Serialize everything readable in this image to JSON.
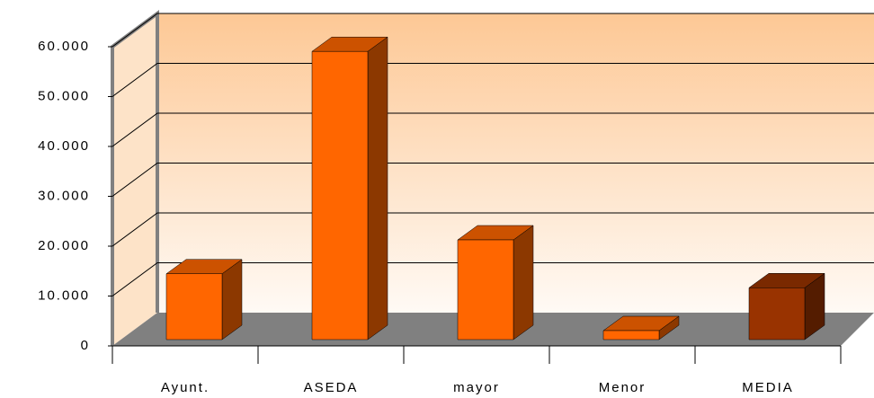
{
  "chart_data": {
    "type": "bar3d",
    "categories": [
      "Ayunt.",
      "ASEDA",
      "mayor",
      "Menor",
      "MEDIA"
    ],
    "values": [
      13200,
      57800,
      20000,
      1800,
      10400
    ],
    "colors": [
      "#ff6600",
      "#ff6600",
      "#ff6600",
      "#ff6600",
      "#993300"
    ],
    "ylim": [
      0,
      60000
    ],
    "yticks": [
      0,
      {
        "value": 10000,
        "label": "10.000"
      },
      {
        "value": 20000,
        "label": "20.000"
      },
      {
        "value": 30000,
        "label": "30.000"
      },
      {
        "value": 40000,
        "label": "40.000"
      },
      {
        "value": 50000,
        "label": "50.000"
      },
      {
        "value": 60000,
        "label": "60.000"
      }
    ],
    "grid": true
  }
}
